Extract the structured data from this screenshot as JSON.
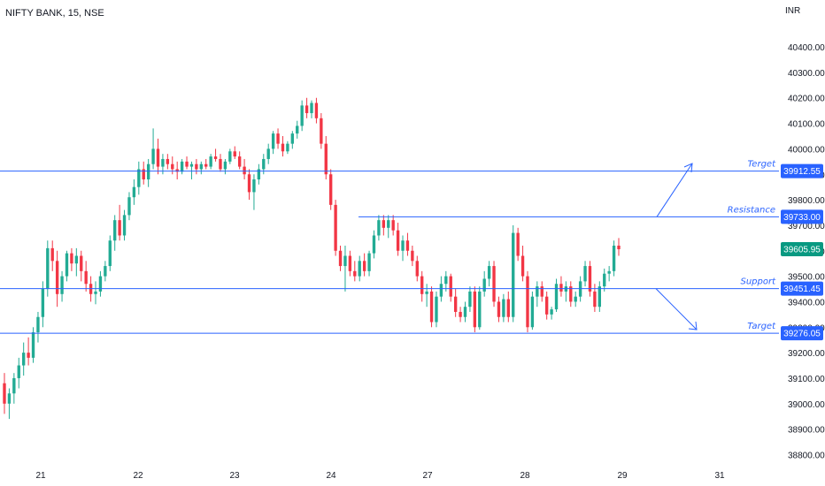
{
  "symbol_title": "NIFTY BANK, 15, NSE",
  "currency": "INR",
  "colors": {
    "up": "#22ab94",
    "down": "#f23645",
    "line": "#2962ff",
    "last": "#089981"
  },
  "chart_data": {
    "type": "candlestick",
    "title": "NIFTY BANK, 15, NSE",
    "ylabel": "INR",
    "ylim": [
      38760,
      40480
    ],
    "y_ticks": [
      38800,
      38900,
      39000,
      39100,
      39200,
      39300,
      39400,
      39500,
      39600,
      39700,
      39800,
      39900,
      40000,
      40100,
      40200,
      40300,
      40400
    ],
    "x_ticks": [
      "21",
      "22",
      "23",
      "24",
      "27",
      "28",
      "29",
      "31"
    ],
    "last_price": {
      "value": 39605.95,
      "label": "39605.95"
    },
    "levels": [
      {
        "name": "Terget",
        "value": 39912.55,
        "label": "39912.55"
      },
      {
        "name": "Resistance",
        "value": 39733.0,
        "label": "39733.00"
      },
      {
        "name": "Support",
        "value": 39451.45,
        "label": "39451.45"
      },
      {
        "name": "Target",
        "value": 39276.05,
        "label": "39276.05"
      }
    ],
    "projections": [
      "up-arrow-to-terget",
      "down-arrow-to-target"
    ],
    "grid": false,
    "ohlc": [
      [
        39080,
        39120,
        38960,
        39000
      ],
      [
        39000,
        39060,
        38940,
        39040
      ],
      [
        39040,
        39120,
        39000,
        39100
      ],
      [
        39100,
        39180,
        39060,
        39150
      ],
      [
        39150,
        39240,
        39110,
        39200
      ],
      [
        39200,
        39260,
        39150,
        39180
      ],
      [
        39180,
        39300,
        39160,
        39280
      ],
      [
        39280,
        39360,
        39240,
        39340
      ],
      [
        39340,
        39480,
        39300,
        39450
      ],
      [
        39450,
        39640,
        39420,
        39610
      ],
      [
        39610,
        39640,
        39520,
        39560
      ],
      [
        39560,
        39600,
        39380,
        39430
      ],
      [
        39430,
        39520,
        39400,
        39500
      ],
      [
        39500,
        39600,
        39480,
        39590
      ],
      [
        39590,
        39610,
        39520,
        39550
      ],
      [
        39550,
        39610,
        39500,
        39580
      ],
      [
        39580,
        39600,
        39480,
        39520
      ],
      [
        39520,
        39560,
        39440,
        39470
      ],
      [
        39470,
        39500,
        39400,
        39430
      ],
      [
        39430,
        39480,
        39390,
        39440
      ],
      [
        39440,
        39520,
        39420,
        39500
      ],
      [
        39500,
        39560,
        39480,
        39540
      ],
      [
        39540,
        39660,
        39520,
        39640
      ],
      [
        39640,
        39740,
        39600,
        39720
      ],
      [
        39720,
        39780,
        39640,
        39660
      ],
      [
        39660,
        39760,
        39640,
        39740
      ],
      [
        39740,
        39830,
        39720,
        39810
      ],
      [
        39810,
        39880,
        39780,
        39850
      ],
      [
        39850,
        39950,
        39820,
        39920
      ],
      [
        39920,
        39950,
        39860,
        39880
      ],
      [
        39880,
        39960,
        39850,
        39940
      ],
      [
        39940,
        40080,
        39920,
        40000
      ],
      [
        40000,
        40040,
        39900,
        39930
      ],
      [
        39930,
        39980,
        39900,
        39960
      ],
      [
        39960,
        39980,
        39920,
        39940
      ],
      [
        39940,
        39970,
        39900,
        39920
      ],
      [
        39920,
        39950,
        39880,
        39910
      ],
      [
        39910,
        39960,
        39900,
        39950
      ],
      [
        39950,
        39970,
        39920,
        39930
      ],
      [
        39930,
        39950,
        39880,
        39940
      ],
      [
        39940,
        39960,
        39900,
        39920
      ],
      [
        39920,
        39950,
        39900,
        39940
      ],
      [
        39940,
        39960,
        39920,
        39930
      ],
      [
        39930,
        39980,
        39920,
        39970
      ],
      [
        39970,
        40000,
        39950,
        39960
      ],
      [
        39960,
        39980,
        39910,
        39920
      ],
      [
        39920,
        39960,
        39900,
        39950
      ],
      [
        39950,
        40000,
        39940,
        39990
      ],
      [
        39990,
        40010,
        39960,
        39970
      ],
      [
        39970,
        39990,
        39920,
        39930
      ],
      [
        39930,
        39960,
        39880,
        39900
      ],
      [
        39900,
        39920,
        39800,
        39830
      ],
      [
        39830,
        39900,
        39760,
        39880
      ],
      [
        39880,
        39940,
        39860,
        39920
      ],
      [
        39920,
        39980,
        39900,
        39960
      ],
      [
        39960,
        40020,
        39940,
        40000
      ],
      [
        40000,
        40070,
        39980,
        40060
      ],
      [
        40060,
        40080,
        40000,
        40020
      ],
      [
        40020,
        40050,
        39970,
        39990
      ],
      [
        39990,
        40030,
        39980,
        40020
      ],
      [
        40020,
        40070,
        40000,
        40060
      ],
      [
        40060,
        40110,
        40040,
        40090
      ],
      [
        40090,
        40190,
        40070,
        40170
      ],
      [
        40170,
        40200,
        40120,
        40140
      ],
      [
        40140,
        40190,
        40120,
        40180
      ],
      [
        40180,
        40200,
        40100,
        40120
      ],
      [
        40120,
        40140,
        40000,
        40020
      ],
      [
        40020,
        40050,
        39880,
        39900
      ],
      [
        39900,
        39920,
        39760,
        39780
      ],
      [
        39780,
        39800,
        39580,
        39600
      ],
      [
        39600,
        39620,
        39520,
        39540
      ],
      [
        39540,
        39620,
        39440,
        39580
      ],
      [
        39580,
        39600,
        39500,
        39520
      ],
      [
        39520,
        39560,
        39480,
        39500
      ],
      [
        39500,
        39580,
        39480,
        39560
      ],
      [
        39560,
        39590,
        39500,
        39520
      ],
      [
        39520,
        39600,
        39500,
        39590
      ],
      [
        39590,
        39680,
        39570,
        39660
      ],
      [
        39660,
        39740,
        39640,
        39720
      ],
      [
        39720,
        39740,
        39660,
        39690
      ],
      [
        39690,
        39740,
        39650,
        39720
      ],
      [
        39720,
        39740,
        39660,
        39680
      ],
      [
        39680,
        39710,
        39580,
        39600
      ],
      [
        39600,
        39660,
        39560,
        39640
      ],
      [
        39640,
        39670,
        39580,
        39600
      ],
      [
        39600,
        39620,
        39540,
        39560
      ],
      [
        39560,
        39580,
        39480,
        39500
      ],
      [
        39500,
        39520,
        39400,
        39430
      ],
      [
        39430,
        39470,
        39380,
        39440
      ],
      [
        39440,
        39460,
        39300,
        39320
      ],
      [
        39320,
        39440,
        39300,
        39420
      ],
      [
        39420,
        39500,
        39400,
        39470
      ],
      [
        39470,
        39520,
        39440,
        39500
      ],
      [
        39500,
        39510,
        39400,
        39420
      ],
      [
        39420,
        39450,
        39340,
        39360
      ],
      [
        39360,
        39380,
        39320,
        39340
      ],
      [
        39340,
        39400,
        39320,
        39380
      ],
      [
        39380,
        39460,
        39360,
        39440
      ],
      [
        39440,
        39460,
        39280,
        39300
      ],
      [
        39300,
        39460,
        39290,
        39440
      ],
      [
        39440,
        39520,
        39420,
        39490
      ],
      [
        39490,
        39560,
        39460,
        39540
      ],
      [
        39540,
        39560,
        39380,
        39400
      ],
      [
        39400,
        39420,
        39320,
        39340
      ],
      [
        39340,
        39430,
        39320,
        39410
      ],
      [
        39410,
        39440,
        39320,
        39340
      ],
      [
        39340,
        39700,
        39320,
        39670
      ],
      [
        39670,
        39690,
        39560,
        39580
      ],
      [
        39580,
        39620,
        39480,
        39500
      ],
      [
        39500,
        39520,
        39280,
        39300
      ],
      [
        39300,
        39440,
        39290,
        39420
      ],
      [
        39420,
        39480,
        39380,
        39460
      ],
      [
        39460,
        39480,
        39400,
        39420
      ],
      [
        39420,
        39440,
        39330,
        39350
      ],
      [
        39350,
        39380,
        39330,
        39370
      ],
      [
        39370,
        39490,
        39360,
        39470
      ],
      [
        39470,
        39500,
        39420,
        39440
      ],
      [
        39440,
        39480,
        39400,
        39460
      ],
      [
        39460,
        39480,
        39380,
        39400
      ],
      [
        39400,
        39440,
        39380,
        39420
      ],
      [
        39420,
        39500,
        39400,
        39480
      ],
      [
        39480,
        39560,
        39460,
        39540
      ],
      [
        39540,
        39560,
        39420,
        39440
      ],
      [
        39440,
        39470,
        39360,
        39380
      ],
      [
        39380,
        39480,
        39360,
        39460
      ],
      [
        39460,
        39530,
        39440,
        39510
      ],
      [
        39510,
        39540,
        39480,
        39520
      ],
      [
        39520,
        39640,
        39500,
        39620
      ],
      [
        39620,
        39650,
        39580,
        39606
      ]
    ]
  }
}
